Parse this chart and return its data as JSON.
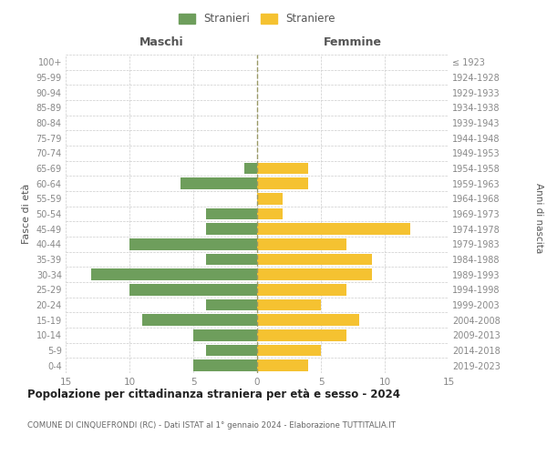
{
  "age_groups": [
    "100+",
    "95-99",
    "90-94",
    "85-89",
    "80-84",
    "75-79",
    "70-74",
    "65-69",
    "60-64",
    "55-59",
    "50-54",
    "45-49",
    "40-44",
    "35-39",
    "30-34",
    "25-29",
    "20-24",
    "15-19",
    "10-14",
    "5-9",
    "0-4"
  ],
  "birth_years": [
    "≤ 1923",
    "1924-1928",
    "1929-1933",
    "1934-1938",
    "1939-1943",
    "1944-1948",
    "1949-1953",
    "1954-1958",
    "1959-1963",
    "1964-1968",
    "1969-1973",
    "1974-1978",
    "1979-1983",
    "1984-1988",
    "1989-1993",
    "1994-1998",
    "1999-2003",
    "2004-2008",
    "2009-2013",
    "2014-2018",
    "2019-2023"
  ],
  "maschi": [
    0,
    0,
    0,
    0,
    0,
    0,
    0,
    1,
    6,
    0,
    4,
    4,
    10,
    4,
    13,
    10,
    4,
    9,
    5,
    4,
    5
  ],
  "femmine": [
    0,
    0,
    0,
    0,
    0,
    0,
    0,
    4,
    4,
    2,
    2,
    12,
    7,
    9,
    9,
    7,
    5,
    8,
    7,
    5,
    4
  ],
  "male_color": "#6e9e5c",
  "female_color": "#f5c231",
  "legend_male": "Stranieri",
  "legend_female": "Straniere",
  "title_maschi": "Maschi",
  "title_femmine": "Femmine",
  "ylabel_left": "Fasce di età",
  "ylabel_right": "Anni di nascita",
  "xlim": 15,
  "title": "Popolazione per cittadinanza straniera per età e sesso - 2024",
  "subtitle": "COMUNE DI CINQUEFRONDI (RC) - Dati ISTAT al 1° gennaio 2024 - Elaborazione TUTTITALIA.IT",
  "bg_color": "#ffffff",
  "grid_color": "#cccccc",
  "bar_height": 0.75,
  "axis_label_color": "#555555",
  "tick_label_color": "#888888"
}
